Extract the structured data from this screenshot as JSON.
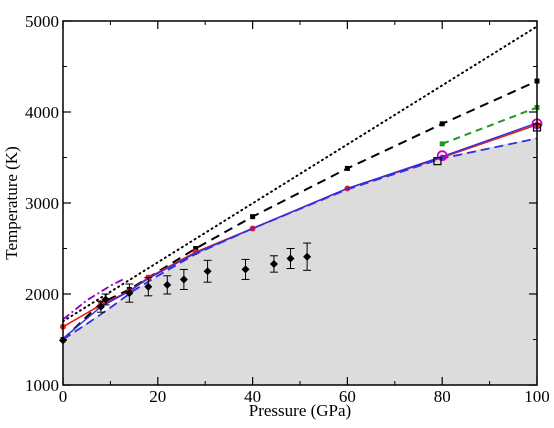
{
  "chart_data": {
    "type": "line",
    "xlabel": "Pressure (GPa)",
    "ylabel": "Temperature (K)",
    "xlim": [
      0,
      100
    ],
    "ylim": [
      1000,
      5000
    ],
    "xticks": [
      0,
      20,
      40,
      60,
      80,
      100
    ],
    "yticks": [
      1000,
      2000,
      3000,
      4000,
      5000
    ],
    "grid": false,
    "legend": "none",
    "shaded_region": {
      "color": "#dcdcdc",
      "x": [
        0,
        2,
        5,
        10,
        15,
        20,
        28,
        40,
        60,
        80,
        100
      ],
      "y": [
        1500,
        1590,
        1680,
        1850,
        2040,
        2200,
        2440,
        2720,
        3150,
        3500,
        3720
      ]
    },
    "series": [
      {
        "color": "#000000",
        "dash": "1,4",
        "width": 2,
        "marker": "none",
        "x": [
          0,
          100
        ],
        "y": [
          1700,
          4940
        ]
      },
      {
        "color": "#000000",
        "dash": "9,6",
        "width": 2,
        "marker": "square",
        "x": [
          0,
          8,
          14,
          18,
          28,
          40,
          60,
          80,
          100
        ],
        "y": [
          1500,
          1900,
          2050,
          2180,
          2500,
          2850,
          3380,
          3870,
          4340
        ]
      },
      {
        "color": "#1f9a1f",
        "dash": "7,5",
        "width": 2,
        "marker": "square",
        "x": [
          80,
          100
        ],
        "y": [
          3650,
          4050
        ]
      },
      {
        "color": "#e81c1c",
        "dash": "",
        "width": 1.6,
        "marker": "circle",
        "x": [
          0,
          8,
          14,
          18,
          28,
          40,
          60,
          80,
          100
        ],
        "y": [
          1640,
          1880,
          2030,
          2180,
          2460,
          2720,
          3160,
          3500,
          3860
        ]
      },
      {
        "color": "#3030e0",
        "dash": "",
        "width": 1.4,
        "marker": "none",
        "x": [
          0,
          8,
          14,
          18,
          28,
          40,
          60,
          80,
          100
        ],
        "y": [
          1510,
          1860,
          2030,
          2170,
          2450,
          2720,
          3160,
          3510,
          3880
        ]
      },
      {
        "color": "#3030e0",
        "dash": "9,5",
        "width": 1.8,
        "marker": "none",
        "x": [
          0,
          5,
          10,
          15,
          20,
          28,
          40,
          60,
          80,
          100
        ],
        "y": [
          1500,
          1670,
          1850,
          2040,
          2200,
          2440,
          2720,
          3150,
          3490,
          3710
        ]
      },
      {
        "color": "#8a00c8",
        "dash": "8,3,2,3",
        "width": 1.8,
        "marker": "none",
        "x": [
          0,
          5,
          10,
          13
        ],
        "y": [
          1720,
          1930,
          2090,
          2170
        ]
      },
      {
        "color": "#c800c8",
        "dash": "",
        "width": 0,
        "marker": "open-circle",
        "x": [
          80,
          100
        ],
        "y": [
          3520,
          3870
        ]
      },
      {
        "color": "#000000",
        "dash": "",
        "width": 0,
        "marker": "open-square",
        "x": [
          79,
          100
        ],
        "y": [
          3460,
          3830
        ]
      },
      {
        "color": "#000000",
        "dash": "",
        "width": 0,
        "marker": "diamond-errorbar",
        "x": [
          0,
          8,
          9,
          14,
          18,
          22,
          25.5,
          30.5,
          38.5,
          44.5,
          48,
          51.5
        ],
        "y": [
          1490,
          1860,
          1940,
          2010,
          2080,
          2100,
          2160,
          2250,
          2270,
          2330,
          2390,
          2410
        ],
        "err": [
          0,
          60,
          60,
          100,
          100,
          100,
          110,
          120,
          110,
          90,
          110,
          150
        ]
      }
    ]
  }
}
